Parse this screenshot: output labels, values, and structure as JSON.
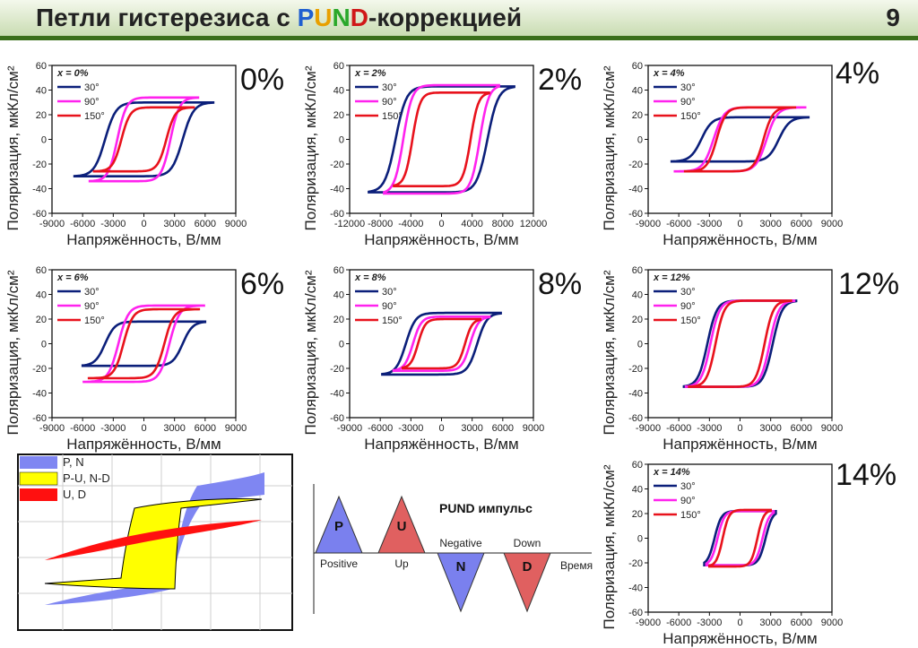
{
  "header": {
    "title_prefix": "Петли гистерезиса с ",
    "title_p": "P",
    "title_u": "U",
    "title_n": "N",
    "title_d": "D",
    "title_suffix": "-коррекцией",
    "slide_number": "9"
  },
  "colors": {
    "c30": "#0b1f7a",
    "c90": "#ff22ee",
    "c150": "#e8121c",
    "header_line": "#3a6e1a"
  },
  "chart_data": [
    {
      "type": "line",
      "id": "x0",
      "label": "0%",
      "legend_title": "x = 0%",
      "xlabel": "Напряжённость, В/мм",
      "ylabel": "Поляризация, мкКл/см²",
      "xlim": [
        -9000,
        9000
      ],
      "xticks": [
        "-9000",
        "-6000",
        "-3000",
        "0",
        "3000",
        "6000",
        "9000"
      ],
      "ylim": [
        -60,
        60
      ],
      "yticks": [
        "60",
        "40",
        "20",
        "0",
        "-20",
        "-40",
        "-60"
      ],
      "series": [
        {
          "name": "30°",
          "ec": 3800,
          "ps": 30,
          "emax": 6800
        },
        {
          "name": "90°",
          "ec": 2600,
          "ps": 34,
          "emax": 5300
        },
        {
          "name": "150°",
          "ec": 2200,
          "ps": 26,
          "emax": 5000
        }
      ]
    },
    {
      "type": "line",
      "id": "x2",
      "label": "2%",
      "legend_title": "x = 2%",
      "xlabel": "Напряжённость, В/мм",
      "ylabel": "Поляризация, мкКл/см²",
      "xlim": [
        -12000,
        12000
      ],
      "xticks": [
        "-12000",
        "-8000",
        "-4000",
        "0",
        "4000",
        "8000",
        "12000"
      ],
      "ylim": [
        -60,
        60
      ],
      "yticks": [
        "60",
        "40",
        "20",
        "0",
        "-20",
        "-40",
        "-60"
      ],
      "series": [
        {
          "name": "30°",
          "ec": 6000,
          "ps": 43,
          "emax": 9500
        },
        {
          "name": "90°",
          "ec": 5000,
          "ps": 44,
          "emax": 7500
        },
        {
          "name": "150°",
          "ec": 3800,
          "ps": 38,
          "emax": 6200
        }
      ]
    },
    {
      "type": "line",
      "id": "x4",
      "label": "4%",
      "legend_title": "x = 4%",
      "xlabel": "Напряжённость, В/мм",
      "ylabel": "Поляризация, мкКл/см²",
      "xlim": [
        -9000,
        9000
      ],
      "xticks": [
        "-9000",
        "-6000",
        "-3000",
        "0",
        "3000",
        "6000",
        "9000"
      ],
      "ylim": [
        -60,
        60
      ],
      "yticks": [
        "60",
        "40",
        "20",
        "0",
        "-20",
        "-40",
        "-60"
      ],
      "series": [
        {
          "name": "30°",
          "ec": 3800,
          "ps": 18,
          "emax": 6700
        },
        {
          "name": "90°",
          "ec": 2600,
          "ps": 26,
          "emax": 6500
        },
        {
          "name": "150°",
          "ec": 2300,
          "ps": 26,
          "emax": 5500
        }
      ]
    },
    {
      "type": "line",
      "id": "x6",
      "label": "6%",
      "legend_title": "x = 6%",
      "xlabel": "Напряжённость, В/мм",
      "ylabel": "Поляризация, мкКл/см²",
      "xlim": [
        -9000,
        9000
      ],
      "xticks": [
        "-9000",
        "-6000",
        "-3000",
        "0",
        "3000",
        "6000",
        "9000"
      ],
      "ylim": [
        -60,
        60
      ],
      "yticks": [
        "60",
        "40",
        "20",
        "0",
        "-20",
        "-40",
        "-60"
      ],
      "series": [
        {
          "name": "30°",
          "ec": 3800,
          "ps": 18,
          "emax": 6000
        },
        {
          "name": "90°",
          "ec": 2500,
          "ps": 31,
          "emax": 6000
        },
        {
          "name": "150°",
          "ec": 2000,
          "ps": 28,
          "emax": 5500
        }
      ]
    },
    {
      "type": "line",
      "id": "x8",
      "label": "8%",
      "legend_title": "x = 8%",
      "xlabel": "Напряжённость, В/мм",
      "ylabel": "Поляризация, мкКл/см²",
      "xlim": [
        -9000,
        9000
      ],
      "xticks": [
        "-9000",
        "-6000",
        "-3000",
        "0",
        "3000",
        "6000",
        "9000"
      ],
      "ylim": [
        -60,
        60
      ],
      "yticks": [
        "60",
        "40",
        "20",
        "0",
        "-20",
        "-40",
        "-60"
      ],
      "series": [
        {
          "name": "30°",
          "ec": 3500,
          "ps": 25,
          "emax": 5800
        },
        {
          "name": "90°",
          "ec": 2800,
          "ps": 22,
          "emax": 4700
        },
        {
          "name": "150°",
          "ec": 2300,
          "ps": 20,
          "emax": 3800
        }
      ]
    },
    {
      "type": "line",
      "id": "x12",
      "label": "12%",
      "legend_title": "x = 12%",
      "xlabel": "Напряжённость, В/мм",
      "ylabel": "Поляризация, мкКл/см²",
      "xlim": [
        -9000,
        9000
      ],
      "xticks": [
        "-9000",
        "-6000",
        "-3000",
        "0",
        "3000",
        "6000",
        "9000"
      ],
      "ylim": [
        -60,
        60
      ],
      "yticks": [
        "60",
        "40",
        "20",
        "0",
        "-20",
        "-40",
        "-60"
      ],
      "series": [
        {
          "name": "30°",
          "ec": 3200,
          "ps": 35,
          "emax": 5500
        },
        {
          "name": "90°",
          "ec": 2900,
          "ps": 35,
          "emax": 5300
        },
        {
          "name": "150°",
          "ec": 2400,
          "ps": 35,
          "emax": 5000
        }
      ]
    },
    {
      "type": "line",
      "id": "x14",
      "label": "14%",
      "legend_title": "x = 14%",
      "xlabel": "Напряжённость, В/мм",
      "ylabel": "Поляризация, мкКл/см²",
      "xlim": [
        -9000,
        9000
      ],
      "xticks": [
        "-9000",
        "-6000",
        "-3000",
        "0",
        "3000",
        "6000",
        "9000"
      ],
      "ylim": [
        -60,
        60
      ],
      "yticks": [
        "60",
        "40",
        "20",
        "0",
        "-20",
        "-40",
        "-60"
      ],
      "series": [
        {
          "name": "30°",
          "ec": 2500,
          "ps": 22,
          "emax": 3500
        },
        {
          "name": "90°",
          "ec": 2200,
          "ps": 22,
          "emax": 3300
        },
        {
          "name": "150°",
          "ec": 1700,
          "ps": 23,
          "emax": 3000
        }
      ]
    }
  ],
  "loops_legend": {
    "items": [
      {
        "label": "P, N",
        "color": "#7f86f2"
      },
      {
        "label": "P-U, N-D",
        "color": "#ffff00"
      },
      {
        "label": "U, D",
        "color": "#ff1010"
      }
    ]
  },
  "pulse": {
    "title": "PUND импульс",
    "p": "P",
    "u": "U",
    "n": "N",
    "d": "D",
    "positive": "Positive",
    "up": "Up",
    "negative": "Negative",
    "down": "Down",
    "time": "Время",
    "p_color": "#7a80ee",
    "u_color": "#e06060",
    "n_color": "#7a80ee",
    "d_color": "#e06060"
  }
}
